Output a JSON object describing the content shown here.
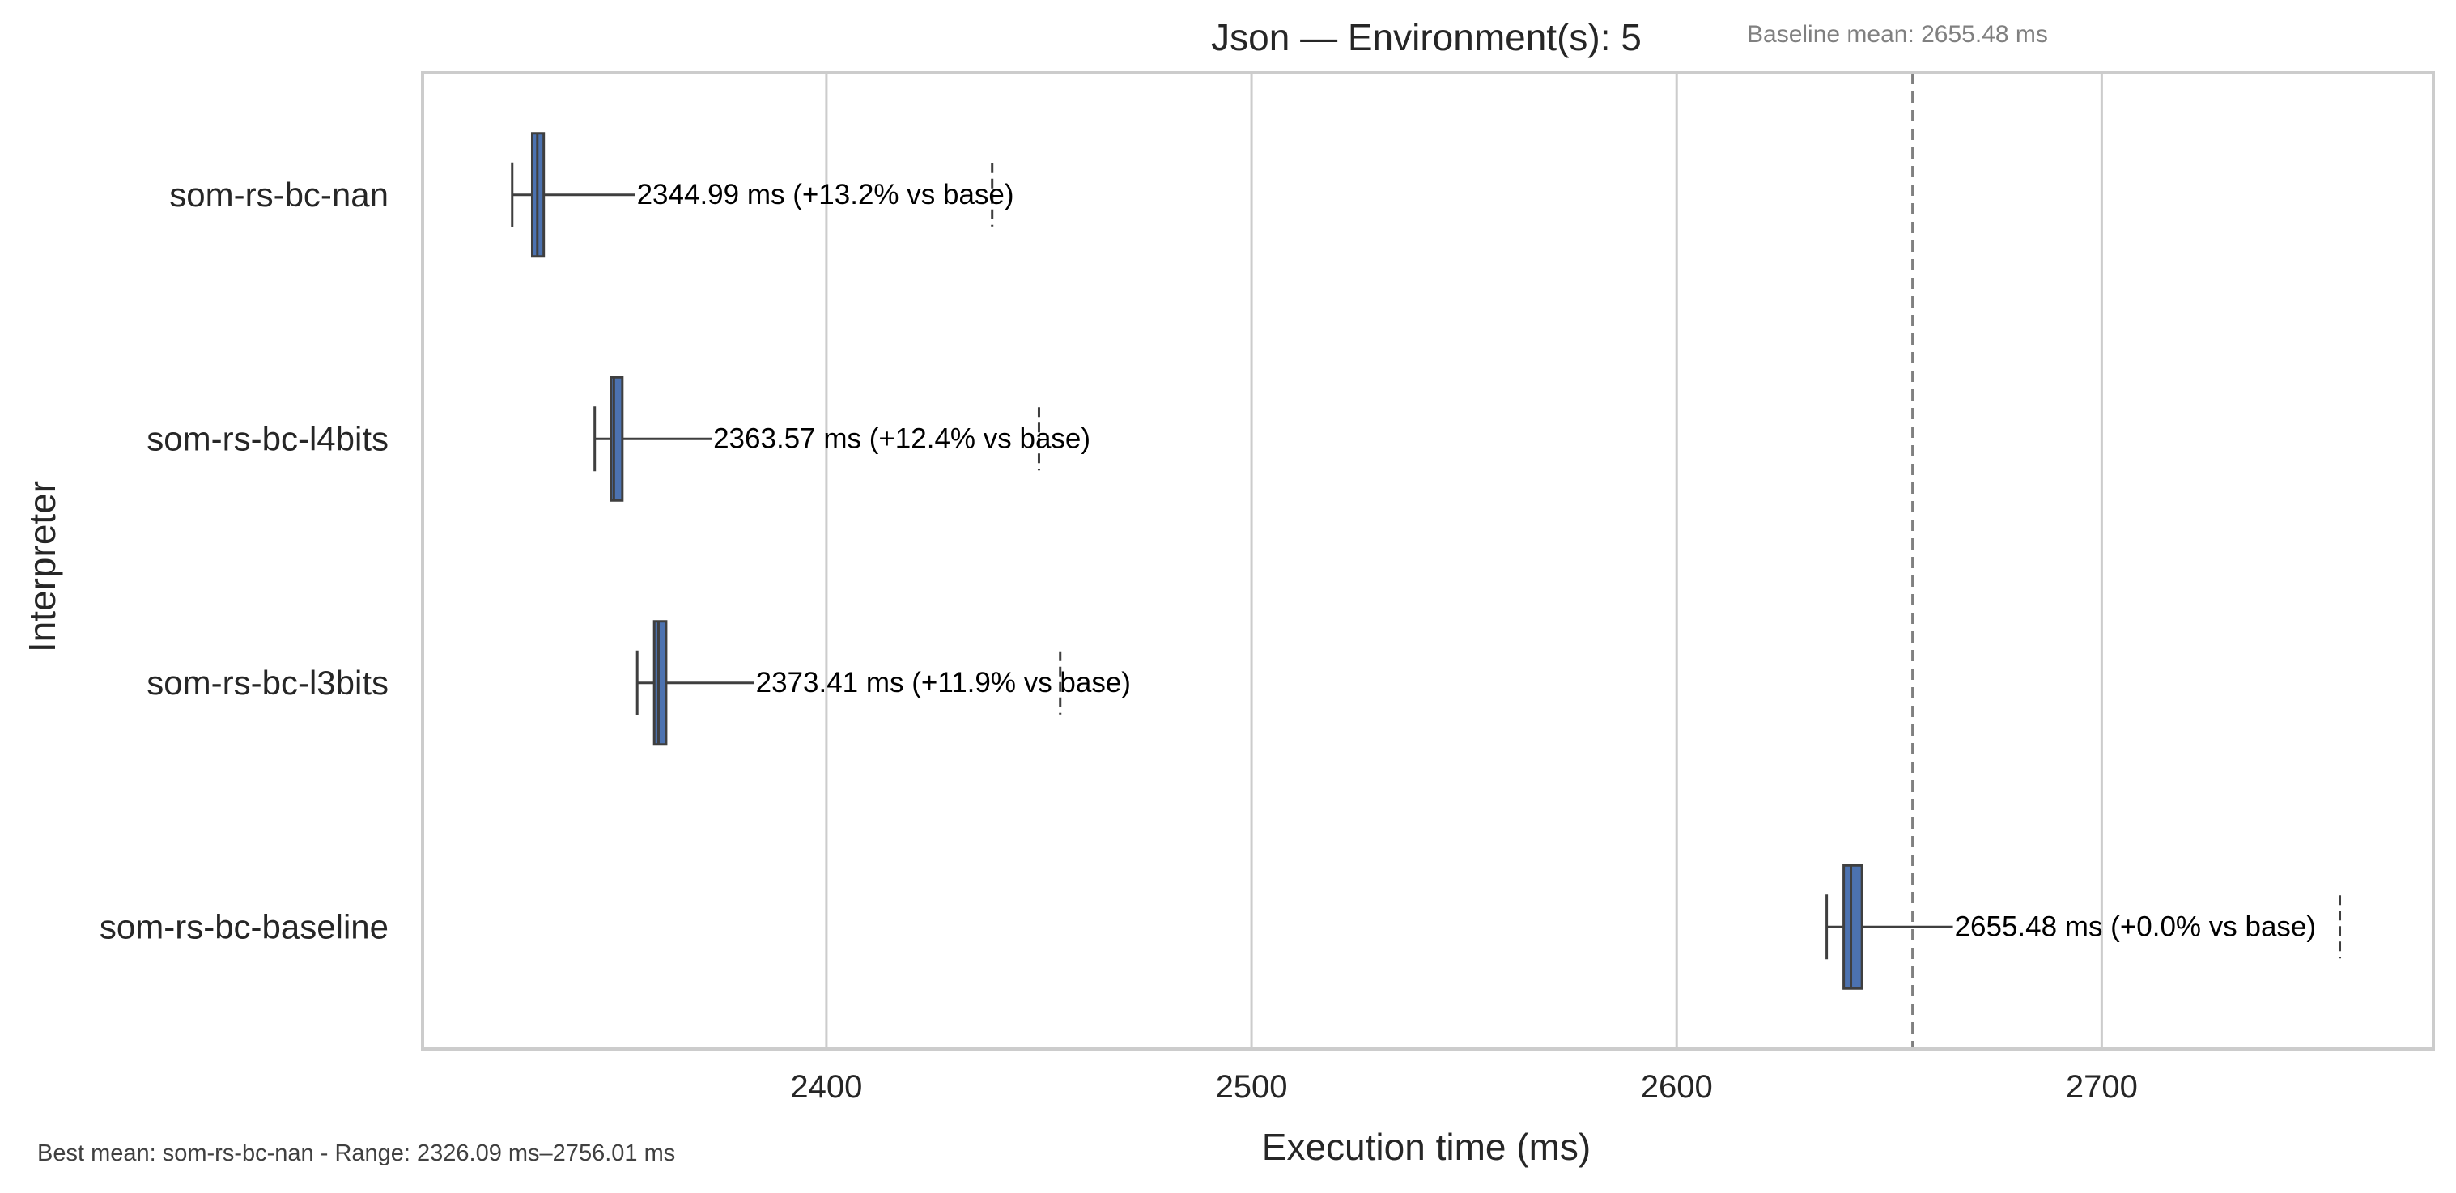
{
  "chart_data": {
    "type": "box",
    "title": "Json — Environment(s): 5",
    "subtitle": "Baseline mean: 2655.48 ms",
    "xlabel": "Execution time (ms)",
    "ylabel": "Interpreter",
    "xlim": [
      2305,
      2778
    ],
    "xticks": [
      2400,
      2500,
      2600,
      2700
    ],
    "xtick_labels": [
      "2400",
      "2500",
      "2600",
      "2700"
    ],
    "grid": "vertical",
    "baseline_mean": 2655.48,
    "categories": [
      "som-rs-bc-nan",
      "som-rs-bc-l4bits",
      "som-rs-bc-l3bits",
      "som-rs-bc-baseline"
    ],
    "series": [
      {
        "values": [
          {
            "whisker_low": 2326.09,
            "q1": 2330.8,
            "median": 2332.0,
            "q3": 2333.5,
            "whisker_high": 2355.0,
            "outlier": 2439.0,
            "mean": 2344.99,
            "label": "2344.99 ms  (+13.2% vs base)"
          },
          {
            "whisker_low": 2345.5,
            "q1": 2349.3,
            "median": 2350.0,
            "q3": 2352.0,
            "whisker_high": 2373.0,
            "outlier": 2450.0,
            "mean": 2363.57,
            "label": "2363.57 ms  (+12.4% vs base)"
          },
          {
            "whisker_low": 2355.5,
            "q1": 2359.5,
            "median": 2360.5,
            "q3": 2362.3,
            "whisker_high": 2383.0,
            "outlier": 2455.0,
            "mean": 2373.41,
            "label": "2373.41 ms  (+11.9% vs base)"
          },
          {
            "whisker_low": 2635.3,
            "q1": 2639.3,
            "median": 2641.0,
            "q3": 2643.6,
            "whisker_high": 2665.0,
            "outlier": 2756.01,
            "mean": 2655.48,
            "label": "2655.48 ms  (+0.0% vs base)"
          }
        ]
      }
    ],
    "footer": "Best mean: som-rs-bc-nan - Range: 2326.09 ms–2756.01 ms",
    "colors": {
      "box": "#4c72b0",
      "line": "#3f3f3f",
      "grid": "#cccccc",
      "frame": "#cccccc",
      "baseline": "#808080"
    }
  }
}
